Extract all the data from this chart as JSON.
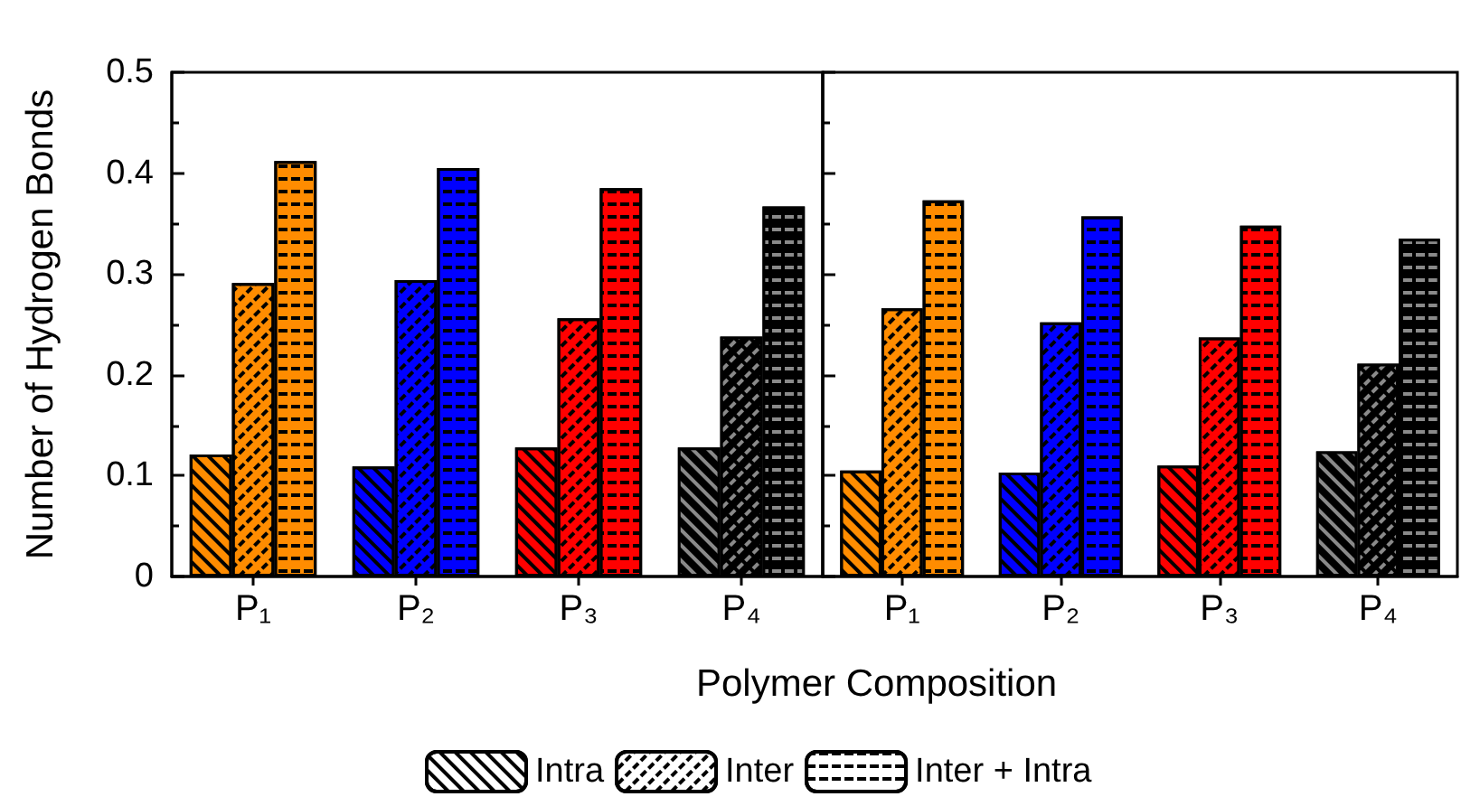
{
  "chart_data": [
    {
      "type": "bar",
      "ylabel": "Number of Hydrogen Bonds",
      "xlabel": "Polymer Composition",
      "categories": [
        "P₁",
        "P₂",
        "P₃",
        "P₄"
      ],
      "series": [
        {
          "name": "Intra",
          "colors": [
            "#ff8c00",
            "#0000ff",
            "#ff0000",
            "#000000"
          ],
          "values": [
            0.121,
            0.109,
            0.128,
            0.128
          ]
        },
        {
          "name": "Inter",
          "colors": [
            "#ff8c00",
            "#0000ff",
            "#ff0000",
            "#000000"
          ],
          "values": [
            0.291,
            0.294,
            0.256,
            0.238
          ]
        },
        {
          "name": "Inter + Intra",
          "colors": [
            "#ff8c00",
            "#0000ff",
            "#ff0000",
            "#000000"
          ],
          "values": [
            0.412,
            0.405,
            0.385,
            0.367
          ]
        }
      ],
      "ylim": [
        0,
        0.5
      ],
      "yticks": [
        0,
        0.1,
        0.2,
        0.3,
        0.4,
        0.5
      ],
      "legend": "bottom",
      "grid": false
    },
    {
      "type": "bar",
      "categories": [
        "P₁",
        "P₂",
        "P₃",
        "P₄"
      ],
      "series": [
        {
          "colors": [
            "#ff8c00",
            "#0000ff",
            "#ff0000",
            "#000000"
          ],
          "values": [
            0.105,
            0.103,
            0.11,
            0.124
          ]
        },
        {
          "colors": [
            "#ff8c00",
            "#0000ff",
            "#ff0000",
            "#000000"
          ],
          "values": [
            0.266,
            0.252,
            0.237,
            0.211
          ]
        },
        {
          "colors": [
            "#ff8c00",
            "#0000ff",
            "#ff0000",
            "#000000"
          ],
          "values": [
            0.373,
            0.357,
            0.348,
            0.335
          ]
        }
      ],
      "ylim": [
        0,
        0.5
      ],
      "yticks": [
        0,
        0.1,
        0.2,
        0.3,
        0.4,
        0.5
      ],
      "tick_labels": "x",
      "grid": false
    }
  ]
}
